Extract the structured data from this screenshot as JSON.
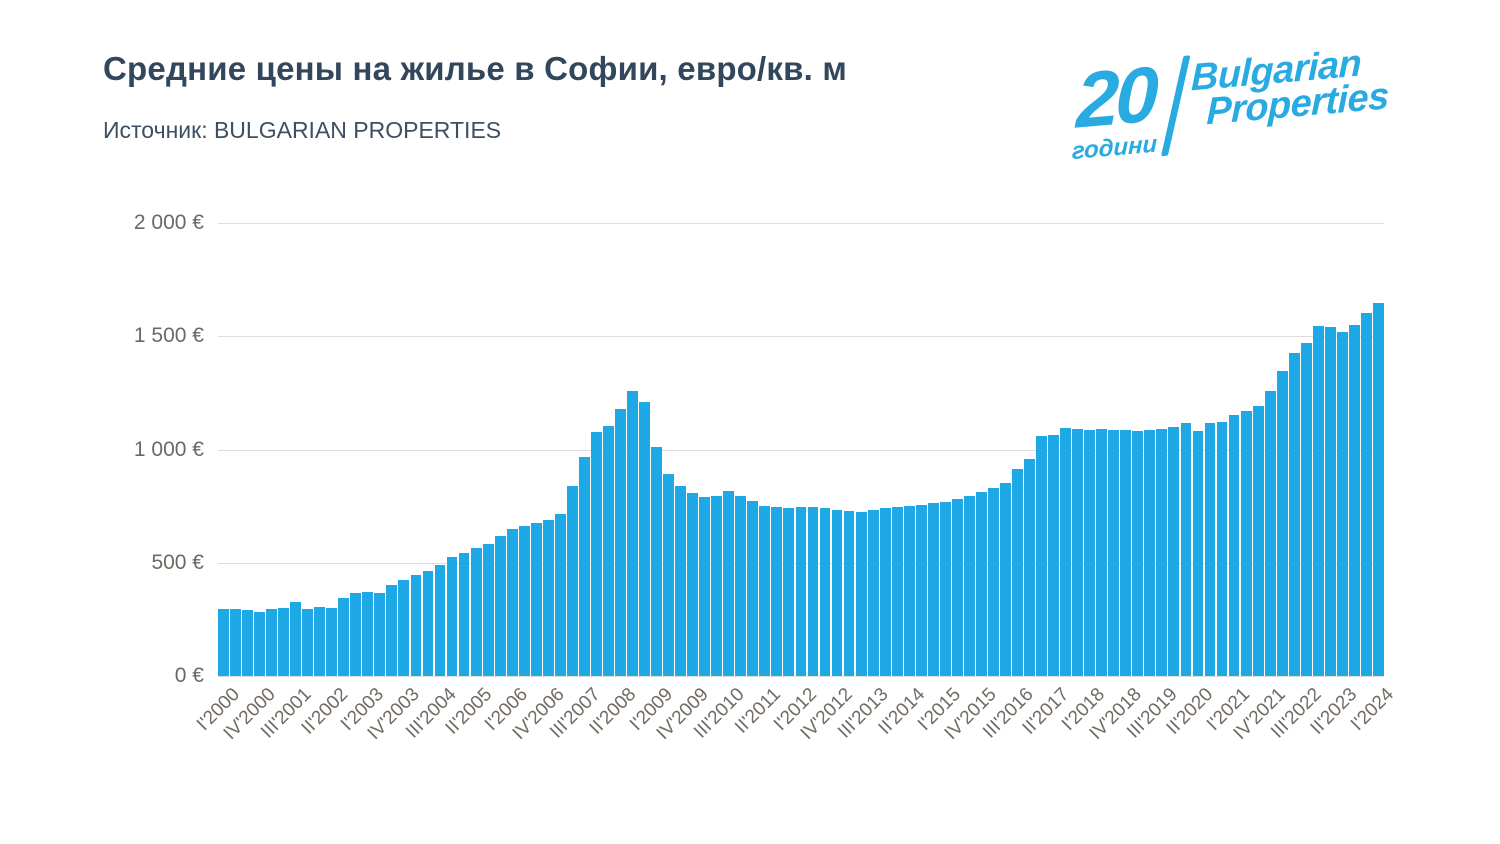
{
  "header": {
    "title": "Средние цены на жилье в Софии, евро/кв. м",
    "source": "Источник: BULGARIAN PROPERTIES"
  },
  "logo": {
    "number": "20",
    "years_label": "години",
    "brand_line1": "Bulgarian",
    "brand_line2": "Properties",
    "color": "#29ABE2"
  },
  "chart_data": {
    "type": "bar",
    "title": "Средние цены на жилье в Софии, евро/кв. м",
    "source": "BULGARIAN PROPERTIES",
    "unit": "евро/кв. м",
    "bar_color": "#1fa8e6",
    "grid": true,
    "ylim": [
      0,
      2000
    ],
    "y_ticks": [
      {
        "value": 0,
        "label": "0 €"
      },
      {
        "value": 500,
        "label": "500 €"
      },
      {
        "value": 1000,
        "label": "1 000 €"
      },
      {
        "value": 1500,
        "label": "1 500 €"
      },
      {
        "value": 2000,
        "label": "2 000 €"
      }
    ],
    "x_tick_every": 3,
    "x_tick_labels_shown": [
      "I'2000",
      "IV'2000",
      "III'2001",
      "II'2002",
      "I'2003",
      "IV'2003",
      "III'2004",
      "II'2005",
      "I'2006",
      "IV'2006",
      "III'2007",
      "II'2008",
      "I'2009",
      "IV'2009",
      "III'2010",
      "II'2011",
      "I'2012",
      "IV'2012",
      "III'2013",
      "II'2014",
      "I'2015",
      "IV'2015",
      "III'2016",
      "II'2017",
      "I'2018",
      "IV'2018",
      "III'2019",
      "II'2020",
      "I'2021",
      "IV'2021",
      "III'2022",
      "II'2023",
      "I'2024"
    ],
    "categories": [
      "I'2000",
      "II'2000",
      "III'2000",
      "IV'2000",
      "I'2001",
      "II'2001",
      "III'2001",
      "IV'2001",
      "I'2002",
      "II'2002",
      "III'2002",
      "IV'2002",
      "I'2003",
      "II'2003",
      "III'2003",
      "IV'2003",
      "I'2004",
      "II'2004",
      "III'2004",
      "IV'2004",
      "I'2005",
      "II'2005",
      "III'2005",
      "IV'2005",
      "I'2006",
      "II'2006",
      "III'2006",
      "IV'2006",
      "I'2007",
      "II'2007",
      "III'2007",
      "IV'2007",
      "I'2008",
      "II'2008",
      "III'2008",
      "IV'2008",
      "I'2009",
      "II'2009",
      "III'2009",
      "IV'2009",
      "I'2010",
      "II'2010",
      "III'2010",
      "IV'2010",
      "I'2011",
      "II'2011",
      "III'2011",
      "IV'2011",
      "I'2012",
      "II'2012",
      "III'2012",
      "IV'2012",
      "I'2013",
      "II'2013",
      "III'2013",
      "IV'2013",
      "I'2014",
      "II'2014",
      "III'2014",
      "IV'2014",
      "I'2015",
      "II'2015",
      "III'2015",
      "IV'2015",
      "I'2016",
      "II'2016",
      "III'2016",
      "IV'2016",
      "I'2017",
      "II'2017",
      "III'2017",
      "IV'2017",
      "I'2018",
      "II'2018",
      "III'2018",
      "IV'2018",
      "I'2019",
      "II'2019",
      "III'2019",
      "IV'2019",
      "I'2020",
      "II'2020",
      "III'2020",
      "IV'2020",
      "I'2021",
      "II'2021",
      "III'2021",
      "IV'2021",
      "I'2022",
      "II'2022",
      "III'2022",
      "IV'2022",
      "I'2023",
      "II'2023",
      "III'2023",
      "IV'2023",
      "I'2024"
    ],
    "values": [
      298,
      298,
      290,
      283,
      296,
      301,
      325,
      297,
      305,
      300,
      345,
      365,
      372,
      368,
      400,
      425,
      448,
      462,
      490,
      525,
      545,
      565,
      585,
      620,
      650,
      663,
      675,
      691,
      715,
      840,
      968,
      1078,
      1106,
      1180,
      1260,
      1210,
      1013,
      893,
      838,
      810,
      790,
      795,
      815,
      795,
      772,
      750,
      744,
      740,
      748,
      745,
      740,
      735,
      728,
      726,
      732,
      740,
      747,
      750,
      757,
      762,
      768,
      780,
      794,
      812,
      831,
      853,
      912,
      960,
      1060,
      1065,
      1095,
      1092,
      1088,
      1092,
      1088,
      1084,
      1081,
      1086,
      1090,
      1100,
      1117,
      1081,
      1116,
      1120,
      1151,
      1169,
      1194,
      1257,
      1345,
      1427,
      1470,
      1546,
      1539,
      1521,
      1551,
      1603,
      1646
    ]
  }
}
